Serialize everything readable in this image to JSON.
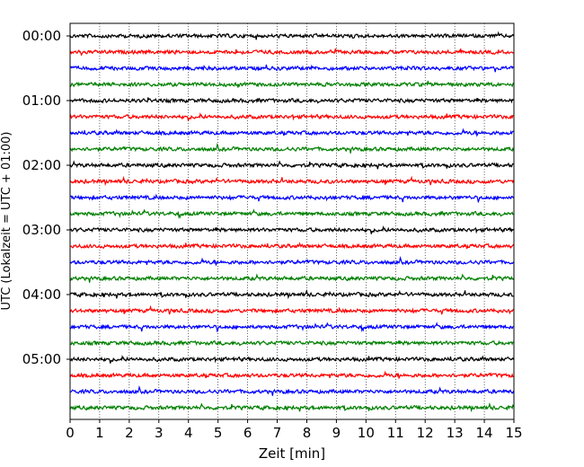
{
  "chart_data": {
    "type": "line",
    "title": "",
    "xlabel": "Zeit  [min]",
    "ylabel": "UTC (Lokalzeit = UTC + 01:00)",
    "xlim": [
      0,
      15
    ],
    "x_ticks": [
      "0",
      "1",
      "2",
      "3",
      "4",
      "5",
      "6",
      "7",
      "8",
      "9",
      "10",
      "11",
      "12",
      "13",
      "14",
      "15"
    ],
    "y_tick_labels": [
      "00:00",
      "01:00",
      "02:00",
      "03:00",
      "04:00",
      "05:00"
    ],
    "trace_interval_min": 15,
    "trace_count": 24,
    "grid": "vertical dotted",
    "colors": [
      "#000000",
      "#ff0000",
      "#0000ff",
      "#008000"
    ]
  }
}
